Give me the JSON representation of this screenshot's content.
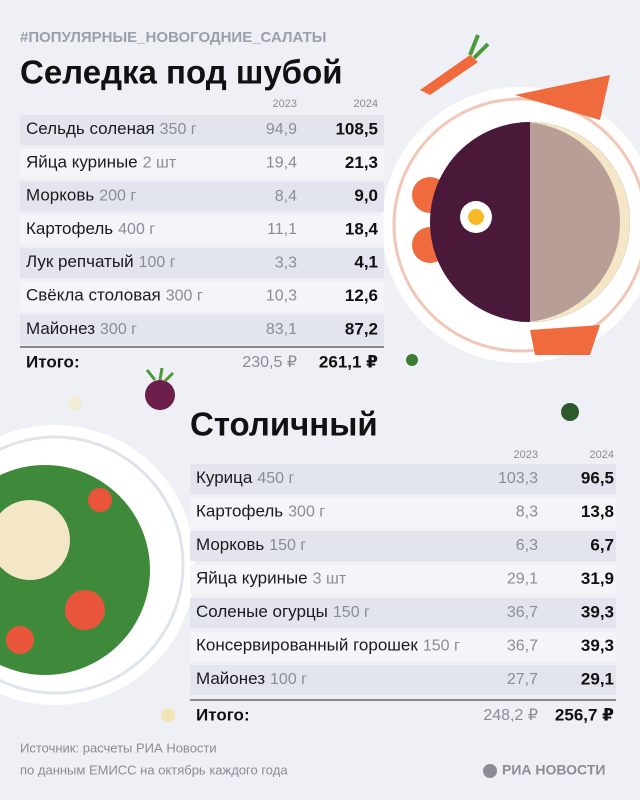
{
  "hashtag": "#ПОПУЛЯРНЫЕ_НОВОГОДНИЕ_САЛАТЫ",
  "tables": [
    {
      "title": "Селедка под шубой",
      "years": [
        "2023",
        "2024"
      ],
      "rows": [
        [
          "Сельдь соленая",
          "350 г",
          "94,9",
          "108,5"
        ],
        [
          "Яйца куриные",
          "2 шт",
          "19,4",
          "21,3"
        ],
        [
          "Морковь",
          "200 г",
          "8,4",
          "9,0"
        ],
        [
          "Картофель",
          "400 г",
          "11,1",
          "18,4"
        ],
        [
          "Лук репчатый",
          "100 г",
          "3,3",
          "4,1"
        ],
        [
          "Свёкла столовая",
          "300 г",
          "10,3",
          "12,6"
        ],
        [
          "Майонез",
          "300 г",
          "83,1",
          "87,2"
        ]
      ],
      "total": [
        "Итого:",
        "230,5 ₽",
        "261,1 ₽"
      ]
    },
    {
      "title": "Столичный",
      "years": [
        "2023",
        "2024"
      ],
      "rows": [
        [
          "Курица",
          "450 г",
          "103,3",
          "96,5"
        ],
        [
          "Картофель",
          "300 г",
          "8,3",
          "13,8"
        ],
        [
          "Морковь",
          "150 г",
          "6,3",
          "6,7"
        ],
        [
          "Яйца куриные",
          "3 шт",
          "29,1",
          "31,9"
        ],
        [
          "Соленые огурцы",
          "150 г",
          "36,7",
          "39,3"
        ],
        [
          "Консервированный горошек",
          "150 г",
          "36,7",
          "39,3"
        ],
        [
          "Майонез",
          "100 г",
          "27,7",
          "29,1"
        ]
      ],
      "total": [
        "Итого:",
        "248,2 ₽",
        "256,7 ₽"
      ]
    }
  ],
  "source": [
    "Источник: расчеты РИА Новости",
    "по данным ЕМИСС на октябрь каждого года"
  ],
  "logo": "РИА НОВОСТИ"
}
